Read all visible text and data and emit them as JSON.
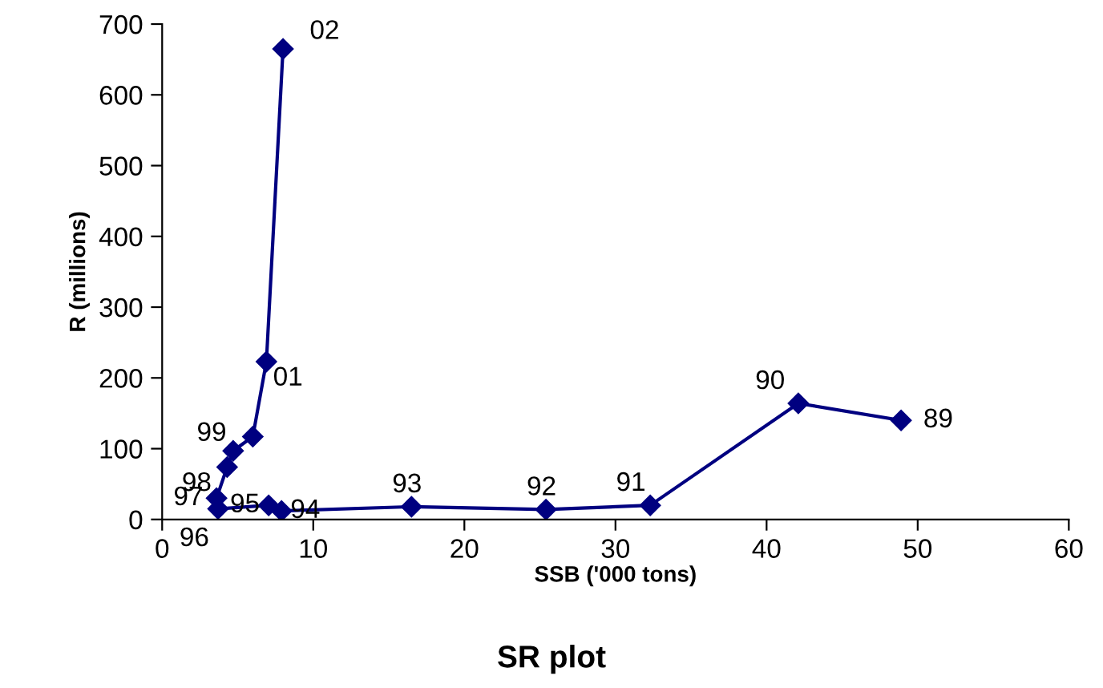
{
  "chart_data": {
    "type": "line",
    "title": "SR plot",
    "xlabel": "SSB ('000 tons)",
    "ylabel": "R (millions)",
    "series": [
      {
        "color": "#000080",
        "x": [
          48.9,
          42.1,
          32.3,
          25.4,
          16.5,
          7.9,
          7.05,
          3.7,
          3.6,
          4.3,
          4.7,
          6.0,
          6.9,
          8.0
        ],
        "values": [
          140,
          164,
          20,
          14,
          18,
          12,
          20,
          15,
          30,
          74,
          97,
          117,
          223,
          665
        ]
      }
    ],
    "annotations": [
      {
        "text": "89",
        "x": 48.9,
        "y": 140
      },
      {
        "text": "90",
        "x": 42.1,
        "y": 164
      },
      {
        "text": "91",
        "x": 32.3,
        "y": 20
      },
      {
        "text": "92",
        "x": 25.4,
        "y": 14
      },
      {
        "text": "93",
        "x": 16.5,
        "y": 18
      },
      {
        "text": "94",
        "x": 7.9,
        "y": 12
      },
      {
        "text": "95",
        "x": 7.05,
        "y": 20
      },
      {
        "text": "96",
        "x": 3.7,
        "y": 15
      },
      {
        "text": "97",
        "x": 3.6,
        "y": 30
      },
      {
        "text": "98",
        "x": 4.3,
        "y": 74
      },
      {
        "text": "99",
        "x": 4.7,
        "y": 97
      },
      {
        "text": "01",
        "x": 6.9,
        "y": 223
      },
      {
        "text": "02",
        "x": 8.0,
        "y": 665
      }
    ],
    "xlim": [
      0,
      60
    ],
    "ylim": [
      0,
      700
    ],
    "xticks": [
      0,
      10,
      20,
      30,
      40,
      50,
      60
    ],
    "yticks": [
      0,
      100,
      200,
      300,
      400,
      500,
      600,
      700
    ],
    "marker": "diamond",
    "line_style": "solid",
    "grid": false,
    "legend": false
  }
}
